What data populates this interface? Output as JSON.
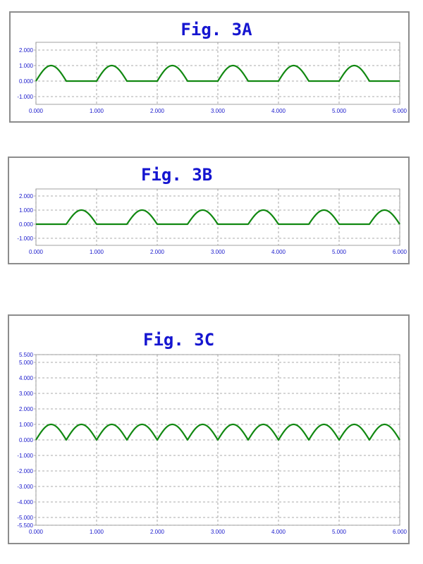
{
  "colors": {
    "axis_text": "#1a1acc",
    "title": "#1515d0",
    "line": "#118811",
    "grid": "#909090",
    "frame": "#8c8c8c"
  },
  "chart_data": [
    {
      "type": "line",
      "title": "Fig. 3A",
      "xlabel": "",
      "ylabel": "",
      "xlim": [
        0,
        6
      ],
      "ylim": [
        -1.5,
        2.5
      ],
      "x_ticks": [
        0,
        1,
        2,
        3,
        4,
        5,
        6
      ],
      "x_tick_labels": [
        "0.000",
        "1.000",
        "2.000",
        "3.000",
        "4.000",
        "5.000",
        "6.000"
      ],
      "y_ticks": [
        2,
        1,
        0,
        -1
      ],
      "y_tick_labels": [
        "2.000",
        "1.000",
        "0.000",
        "-1.000"
      ],
      "grid": true,
      "series": [
        {
          "waveform": "half-wave rectified sine",
          "amplitude": 1.0,
          "period": 1.0,
          "positive_half_start": 0.0,
          "half_width": 0.5,
          "x_range": [
            0,
            6
          ]
        }
      ]
    },
    {
      "type": "line",
      "title": "Fig. 3B",
      "xlabel": "",
      "ylabel": "",
      "xlim": [
        0,
        6
      ],
      "ylim": [
        -1.5,
        2.5
      ],
      "x_ticks": [
        0,
        1,
        2,
        3,
        4,
        5,
        6
      ],
      "x_tick_labels": [
        "0.000",
        "1.000",
        "2.000",
        "3.000",
        "4.000",
        "5.000",
        "6.000"
      ],
      "y_ticks": [
        2,
        1,
        0,
        -1
      ],
      "y_tick_labels": [
        "2.000",
        "1.000",
        "0.000",
        "-1.000"
      ],
      "grid": true,
      "series": [
        {
          "waveform": "half-wave rectified sine",
          "amplitude": 1.0,
          "period": 1.0,
          "positive_half_start": 0.5,
          "half_width": 0.5,
          "x_range": [
            0,
            6
          ]
        }
      ]
    },
    {
      "type": "line",
      "title": "Fig. 3C",
      "xlabel": "",
      "ylabel": "",
      "xlim": [
        0,
        6
      ],
      "ylim": [
        -5.5,
        5.5
      ],
      "x_ticks": [
        0,
        1,
        2,
        3,
        4,
        5,
        6
      ],
      "x_tick_labels": [
        "0.000",
        "1.000",
        "2.000",
        "3.000",
        "4.000",
        "5.000",
        "6.000"
      ],
      "y_ticks": [
        5.5,
        5,
        4,
        3,
        2,
        1,
        0,
        -1,
        -2,
        -3,
        -4,
        -5,
        -5.5
      ],
      "y_tick_labels": [
        "5.500",
        "5.000",
        "4.000",
        "3.000",
        "2.000",
        "1.000",
        "0.000",
        "-1.000",
        "-2.000",
        "-3.000",
        "-4.000",
        "-5.000",
        "-5.500"
      ],
      "grid": true,
      "series": [
        {
          "waveform": "full-wave rectified sine",
          "amplitude": 1.0,
          "period": 1.0,
          "positive_half_start": 0.0,
          "half_width": 0.5,
          "x_range": [
            0,
            6
          ]
        }
      ]
    }
  ]
}
